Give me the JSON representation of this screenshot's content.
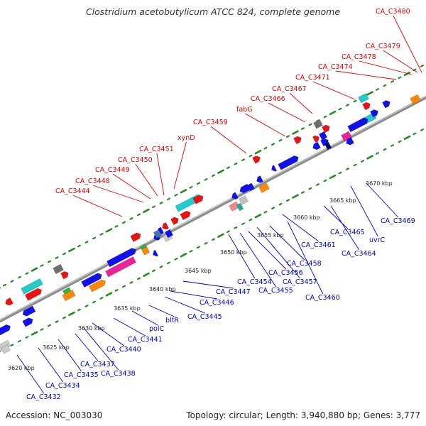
{
  "title": "Clostridium acetobutylicum ATCC 824, complete genome",
  "footer": {
    "accession": "Accession: NC_003030",
    "summary": "Topology: circular; Length: 3,940,880 bp; Genes: 3,777"
  },
  "colors": {
    "label_top": "#dd0000",
    "label_bottom": "#0000cc",
    "dots": "#228b22",
    "backbone": "#8c8c8c"
  },
  "ticks": [
    "3620 kbp",
    "3625 kbp",
    "3630 kbp",
    "3635 kbp",
    "3640 kbp",
    "3645 kbp",
    "3650 kbp",
    "3655 kbp",
    "3660 kbp",
    "3665 kbp",
    "3670 kbp"
  ],
  "top_labels": [
    "CA_C3444",
    "CA_C3448",
    "CA_C3449",
    "CA_C3450",
    "CA_C3451",
    "xynD",
    "CA_C3459",
    "fabG",
    "CA_C3466",
    "CA_C3467",
    "CA_C3471",
    "CA_C3474",
    "CA_C3478",
    "CA_C3479",
    "CA_C3480"
  ],
  "bottom_labels": [
    "CA_C3432",
    "CA_C3434",
    "CA_C3435",
    "CA_C3437",
    "CA_C3438",
    "CA_C3440",
    "CA_C3441",
    "polC",
    "bltR",
    "CA_C3445",
    "CA_C3446",
    "CA_C3447",
    "CA_C3454",
    "CA_C3455",
    "CA_C3456",
    "CA_C3457",
    "CA_C3458",
    "CA_C3460",
    "CA_C3461",
    "CA_C3464",
    "CA_C3465",
    "uvrC",
    "CA_C3469"
  ]
}
